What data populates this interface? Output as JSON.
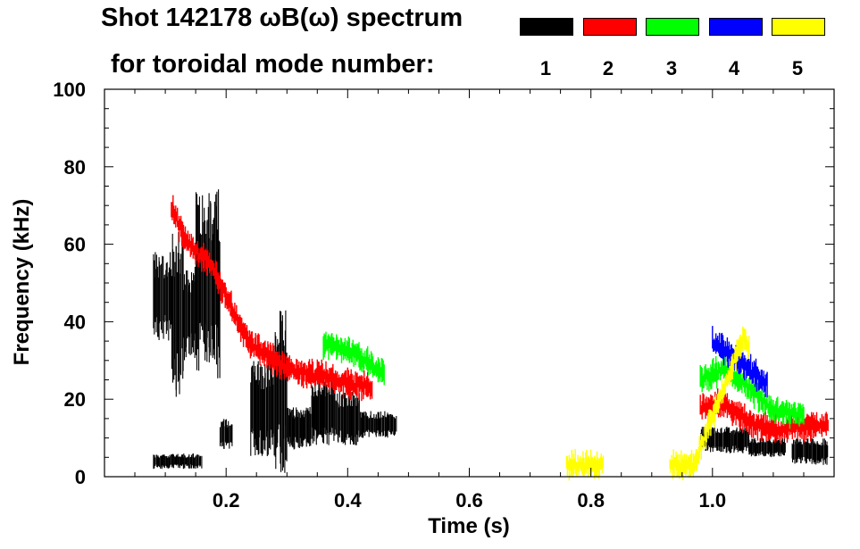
{
  "header": {
    "title": "Shot 142178 ωB(ω) spectrum",
    "subtitle": "for toroidal mode number:"
  },
  "legend": [
    {
      "mode": "1",
      "color": "#000000"
    },
    {
      "mode": "2",
      "color": "#ff0000"
    },
    {
      "mode": "3",
      "color": "#00ff00"
    },
    {
      "mode": "4",
      "color": "#0000ff"
    },
    {
      "mode": "5",
      "color": "#ffff00"
    }
  ],
  "chart_data": {
    "type": "scatter",
    "title": "Shot 142178 ωB(ω) spectrum for toroidal mode number",
    "xlabel": "Time (s)",
    "ylabel": "Frequency (kHz)",
    "xlim": [
      0.0,
      1.2
    ],
    "ylim": [
      0,
      100
    ],
    "xticks": [
      0.2,
      0.4,
      0.6,
      0.8,
      1.0
    ],
    "xtick_labels": [
      "0.2",
      "0.4",
      "0.6",
      "0.8",
      "1.0"
    ],
    "yticks": [
      0,
      20,
      40,
      60,
      80,
      100
    ],
    "ytick_labels": [
      "0",
      "20",
      "40",
      "60",
      "80",
      "100"
    ],
    "series": [
      {
        "name": "n=1",
        "color": "#000000",
        "segments": [
          {
            "t0": 0.08,
            "t1": 0.11,
            "f0": 35,
            "f1": 58
          },
          {
            "t0": 0.11,
            "t1": 0.13,
            "f0": 20,
            "f1": 65
          },
          {
            "t0": 0.13,
            "t1": 0.15,
            "f0": 30,
            "f1": 55
          },
          {
            "t0": 0.15,
            "t1": 0.19,
            "f0": 25,
            "f1": 75
          },
          {
            "t0": 0.19,
            "t1": 0.21,
            "f0": 7,
            "f1": 15
          },
          {
            "t0": 0.24,
            "t1": 0.28,
            "f0": 5,
            "f1": 30
          },
          {
            "t0": 0.28,
            "t1": 0.3,
            "f0": 0,
            "f1": 45
          },
          {
            "t0": 0.3,
            "t1": 0.34,
            "f0": 7,
            "f1": 18
          },
          {
            "t0": 0.34,
            "t1": 0.38,
            "f0": 8,
            "f1": 26
          },
          {
            "t0": 0.38,
            "t1": 0.42,
            "f0": 8,
            "f1": 22
          },
          {
            "t0": 0.42,
            "t1": 0.48,
            "f0": 10,
            "f1": 17
          },
          {
            "t0": 0.08,
            "t1": 0.16,
            "f0": 2,
            "f1": 6
          },
          {
            "t0": 0.98,
            "t1": 1.06,
            "f0": 6,
            "f1": 13
          },
          {
            "t0": 1.06,
            "t1": 1.12,
            "f0": 5,
            "f1": 10
          },
          {
            "t0": 1.13,
            "t1": 1.19,
            "f0": 3,
            "f1": 10
          }
        ]
      },
      {
        "name": "n=2",
        "color": "#ff0000",
        "ridge": [
          [
            0.11,
            70
          ],
          [
            0.13,
            62
          ],
          [
            0.15,
            58
          ],
          [
            0.17,
            56
          ],
          [
            0.24,
            34
          ],
          [
            0.28,
            30
          ],
          [
            0.32,
            27
          ],
          [
            0.36,
            26
          ],
          [
            0.4,
            24
          ],
          [
            0.44,
            23
          ],
          [
            0.98,
            18
          ],
          [
            1.02,
            19
          ],
          [
            1.06,
            14
          ],
          [
            1.1,
            12
          ],
          [
            1.15,
            13
          ],
          [
            1.19,
            14
          ]
        ]
      },
      {
        "name": "n=3",
        "color": "#00ff00",
        "ridge": [
          [
            0.36,
            34
          ],
          [
            0.4,
            33
          ],
          [
            0.44,
            29
          ],
          [
            0.46,
            27
          ],
          [
            0.98,
            25
          ],
          [
            1.02,
            28
          ],
          [
            1.06,
            23
          ],
          [
            1.1,
            17
          ],
          [
            1.15,
            16
          ]
        ]
      },
      {
        "name": "n=4",
        "color": "#0000ff",
        "ridge": [
          [
            1.0,
            35
          ],
          [
            1.04,
            30
          ],
          [
            1.06,
            28
          ],
          [
            1.09,
            24
          ]
        ]
      },
      {
        "name": "n=5",
        "color": "#ffff00",
        "ridge": [
          [
            0.76,
            3
          ],
          [
            0.82,
            3
          ],
          [
            0.93,
            3
          ],
          [
            0.97,
            3
          ],
          [
            1.05,
            36
          ],
          [
            1.06,
            33
          ]
        ]
      }
    ]
  }
}
